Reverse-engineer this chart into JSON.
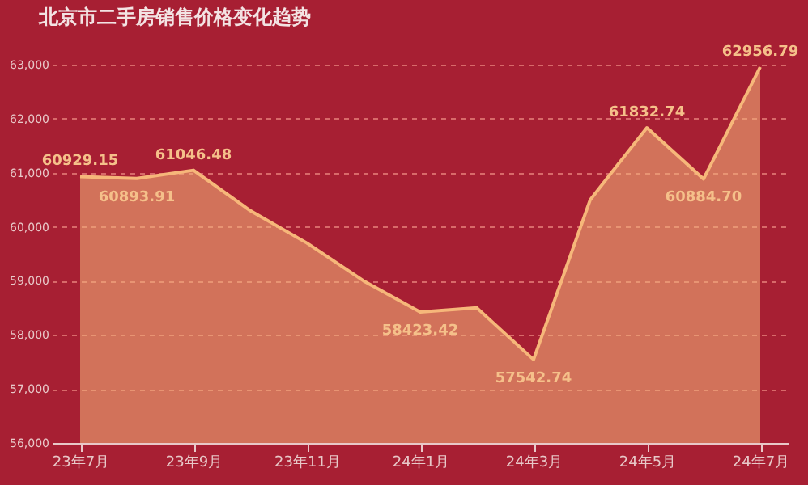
{
  "chart_data": {
    "type": "area",
    "title": "北京市二手房销售价格变化趋势",
    "categories": [
      "23年7月",
      null,
      "23年9月",
      null,
      "23年11月",
      null,
      "24年1月",
      null,
      "24年3月",
      null,
      "24年5月",
      null,
      "24年7月"
    ],
    "series": [
      {
        "color": "#f6b77a",
        "values": [
          60929.15,
          60893.91,
          61046.48,
          60300,
          59700,
          59000,
          58423.42,
          58500,
          57542.74,
          60500,
          61832.74,
          60884.7,
          62956.79
        ],
        "value_labels": [
          "60929.15",
          "60893.91",
          "61046.48",
          null,
          null,
          null,
          "58423.42",
          null,
          "57542.74",
          null,
          "61832.74",
          "60884.70",
          "62956.79"
        ]
      }
    ],
    "ylim": [
      56000,
      63000
    ],
    "yticks": [
      {
        "value": 56000,
        "label": "56,000"
      },
      {
        "value": 57000,
        "label": "57,000"
      },
      {
        "value": 58000,
        "label": "58,000"
      },
      {
        "value": 59000,
        "label": "59,000"
      },
      {
        "value": 60000,
        "label": "60,000"
      },
      {
        "value": 61000,
        "label": "61,000"
      },
      {
        "value": 62000,
        "label": "62,000"
      },
      {
        "value": 63000,
        "label": "63,000"
      }
    ],
    "grid": "y",
    "marker": "none",
    "line_style": "solid"
  }
}
